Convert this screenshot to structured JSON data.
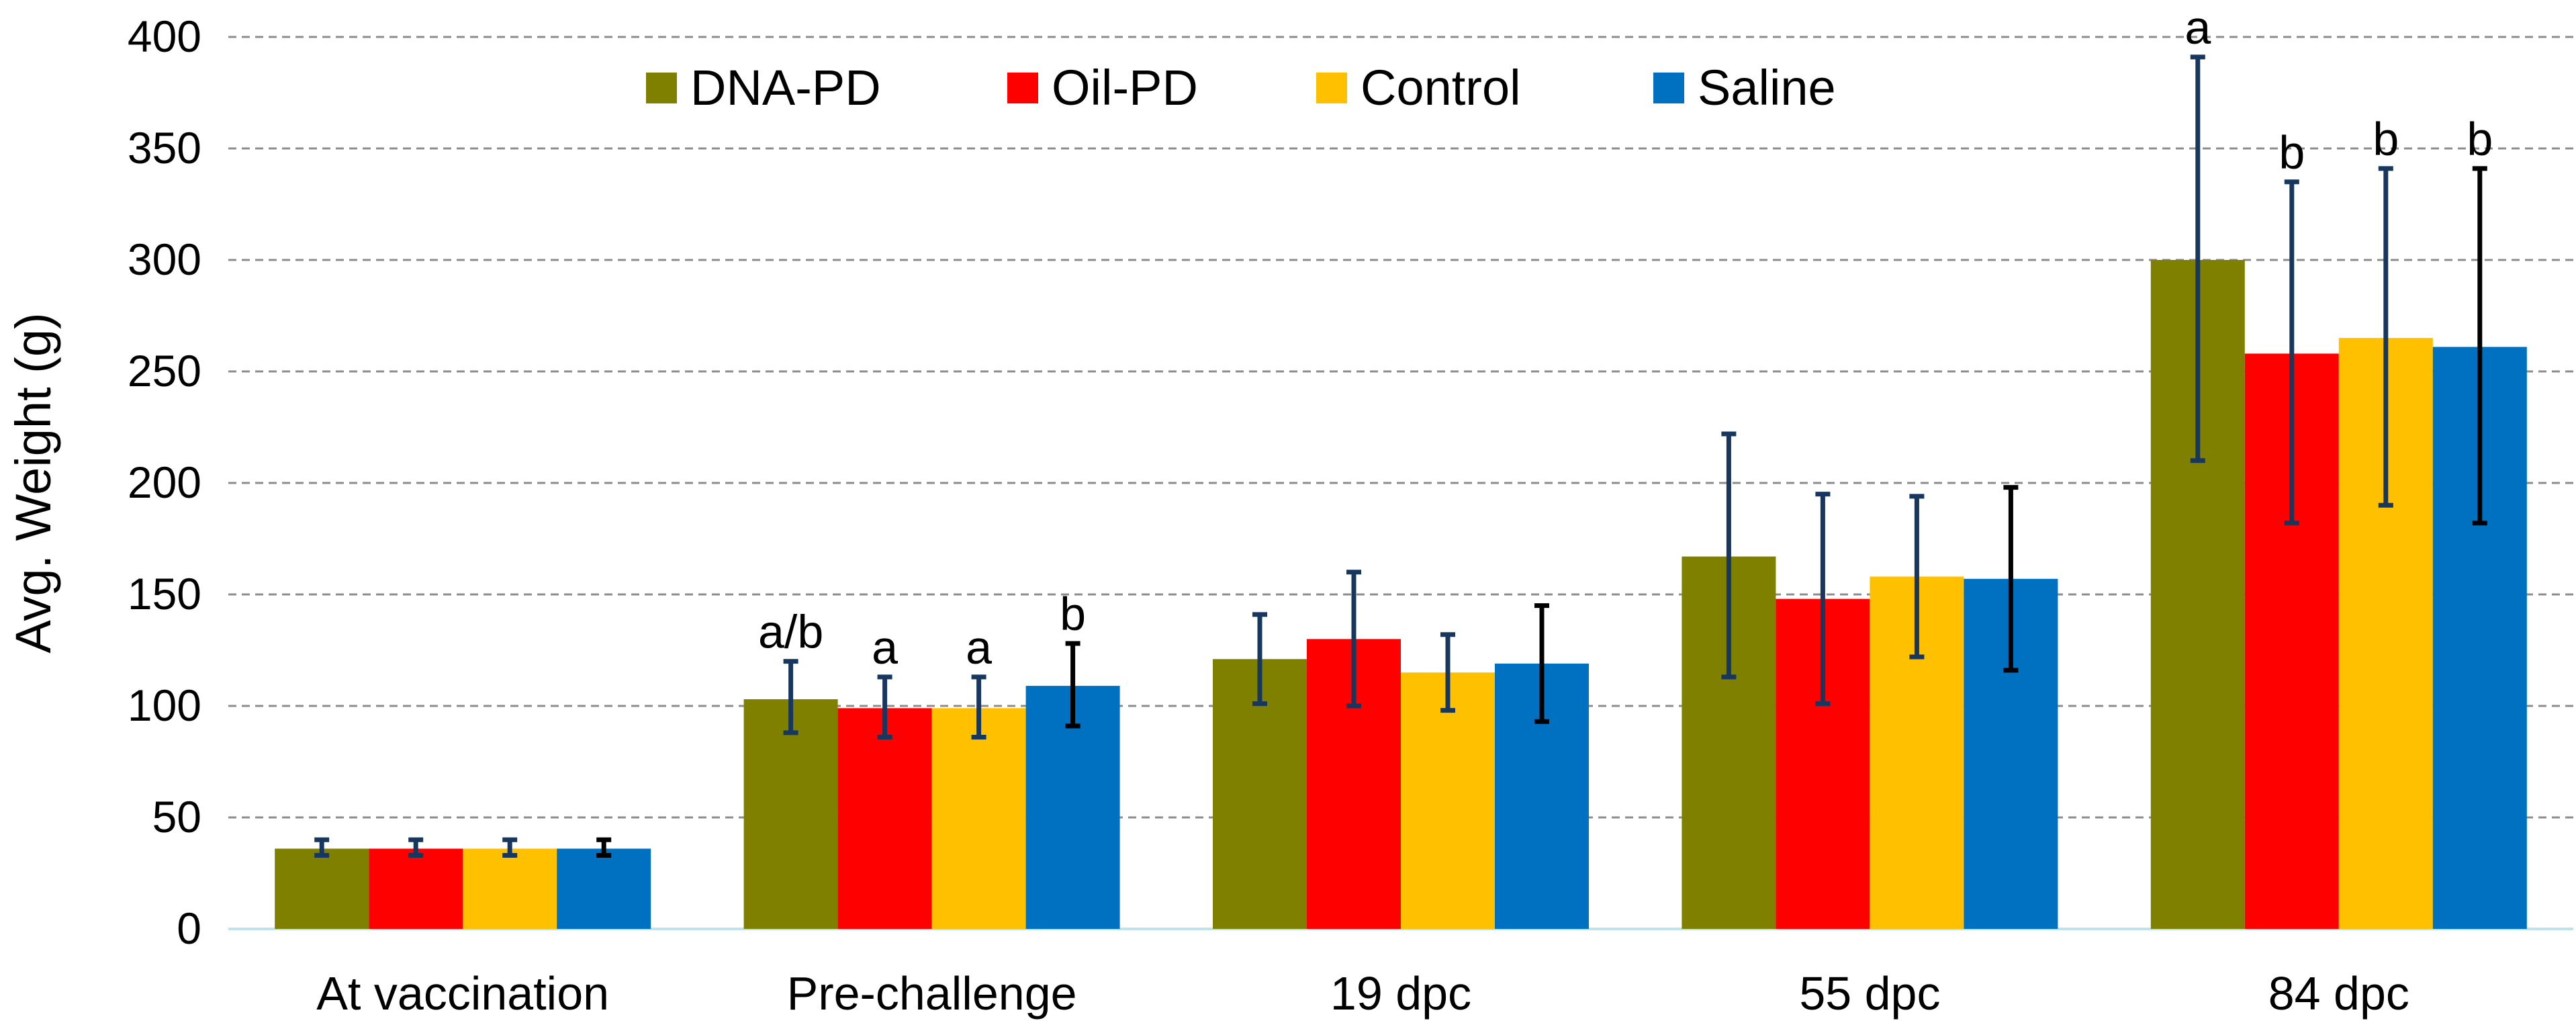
{
  "chart_data": {
    "type": "bar",
    "title": "",
    "xlabel": "",
    "ylabel": "Avg. Weight (g)",
    "ylim": [
      0,
      400
    ],
    "yticks": [
      0,
      50,
      100,
      150,
      200,
      250,
      300,
      350,
      400
    ],
    "grid": "horizontal dashed",
    "legend_position": "top",
    "categories": [
      "At vaccination",
      "Pre-challenge",
      "19 dpc",
      "55 dpc",
      "84 dpc"
    ],
    "series": [
      {
        "name": "DNA-PD",
        "color": "#808000",
        "error_color": "#17375E",
        "values": [
          36,
          103,
          121,
          167,
          300
        ],
        "error_low": [
          33,
          88,
          101,
          113,
          210
        ],
        "error_high": [
          40,
          120,
          141,
          222,
          391
        ],
        "labels": [
          "",
          "a/b",
          "",
          "",
          "a"
        ]
      },
      {
        "name": "Oil-PD",
        "color": "#FF0000",
        "error_color": "#17375E",
        "values": [
          36,
          99,
          130,
          148,
          258
        ],
        "error_low": [
          33,
          86,
          100,
          101,
          182
        ],
        "error_high": [
          40,
          113,
          160,
          195,
          335
        ],
        "labels": [
          "",
          "a",
          "",
          "",
          "b"
        ]
      },
      {
        "name": "Control",
        "color": "#FFC000",
        "error_color": "#17375E",
        "values": [
          36,
          99,
          115,
          158,
          265
        ],
        "error_low": [
          33,
          86,
          98,
          122,
          190
        ],
        "error_high": [
          40,
          113,
          132,
          194,
          341
        ],
        "labels": [
          "",
          "a",
          "",
          "",
          "b"
        ]
      },
      {
        "name": "Saline",
        "color": "#0070C0",
        "error_color": "#000000",
        "values": [
          36,
          109,
          119,
          157,
          261
        ],
        "error_low": [
          33,
          91,
          93,
          116,
          182
        ],
        "error_high": [
          40,
          128,
          145,
          198,
          341
        ],
        "labels": [
          "",
          "b",
          "",
          "",
          "b"
        ]
      }
    ]
  }
}
